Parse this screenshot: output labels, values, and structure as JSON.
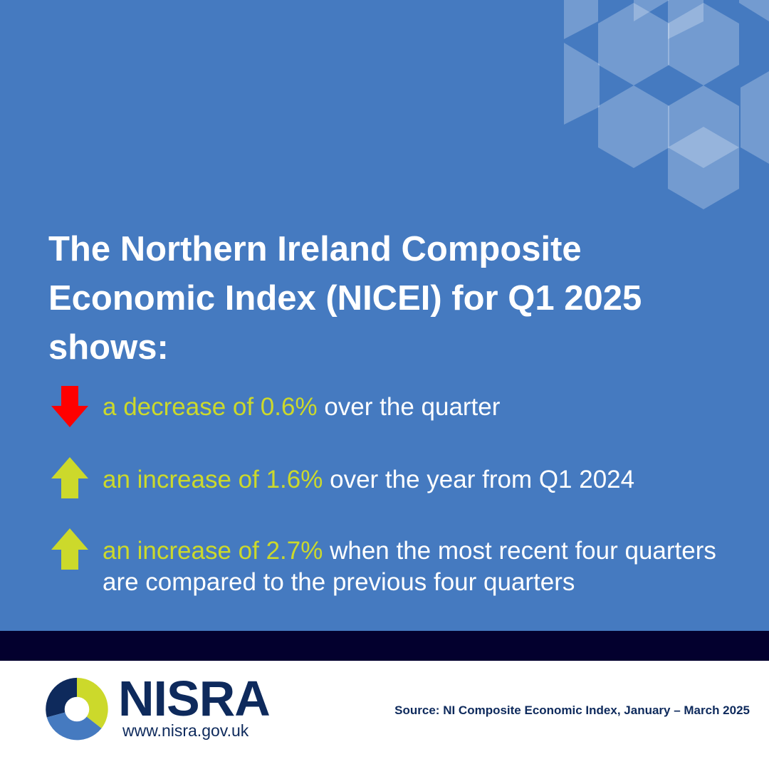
{
  "headline": {
    "line1": "The Northern Ireland Composite",
    "line2": "Economic Index (NICEI) for Q1 2025",
    "line3": "shows:"
  },
  "stats": [
    {
      "direction": "down",
      "arrow_icon": "arrow-down-icon",
      "highlight": "a decrease of 0.6%",
      "rest": " over the quarter"
    },
    {
      "direction": "up",
      "arrow_icon": "arrow-up-icon",
      "highlight": "an increase of 1.6%",
      "rest": " over the year from Q1 2024"
    },
    {
      "direction": "up",
      "arrow_icon": "arrow-up-icon",
      "highlight": "an increase of 2.7%",
      "rest": " when the most recent four quarters are compared to the previous four quarters"
    }
  ],
  "footer": {
    "logo_name": "NISRA",
    "logo_url": "www.nisra.gov.uk",
    "source": "Source: NI Composite Economic Index, January – March 2025"
  },
  "colors": {
    "background_blue": "#457ac0",
    "highlight_yellow_green": "#ccd92b",
    "down_arrow_red": "#ff0000",
    "dark_band": "#03002e",
    "logo_navy": "#0e2a5c"
  }
}
